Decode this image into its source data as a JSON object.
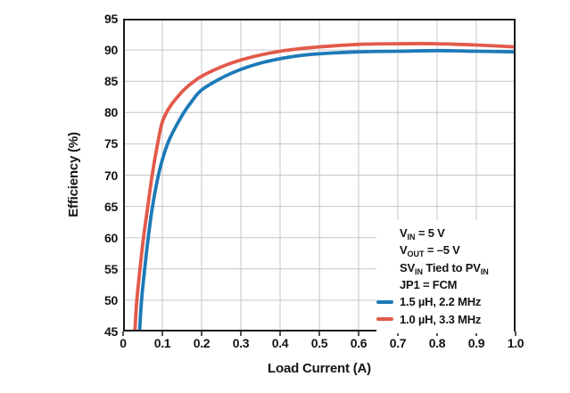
{
  "figure": {
    "background": "#ffffff"
  },
  "chart_data": {
    "type": "line",
    "title": "",
    "xlabel": "Load Current (A)",
    "ylabel": "Efficiency (%)",
    "xlim": [
      0,
      1.0
    ],
    "ylim": [
      45,
      95
    ],
    "x_ticks": [
      0,
      0.1,
      0.2,
      0.3,
      0.4,
      0.5,
      0.6,
      0.7,
      0.8,
      0.9,
      1.0
    ],
    "x_tick_labels": [
      "0",
      "0.1",
      "0.2",
      "0.3",
      "0.4",
      "0.5",
      "0.6",
      "0.7",
      "0.8",
      "0.9",
      "1.0"
    ],
    "y_ticks": [
      45,
      50,
      55,
      60,
      65,
      70,
      75,
      80,
      85,
      90,
      95
    ],
    "grid": true,
    "grid_color": "#c6c6c6",
    "axis_color": "#1a1a1a",
    "legend_position": "inside-bottom-right",
    "series": [
      {
        "name": "1.5 µH, 2.2 MHz",
        "color": "#1d7ab8",
        "points": [
          [
            0.042,
            45
          ],
          [
            0.047,
            50
          ],
          [
            0.055,
            55
          ],
          [
            0.064,
            60
          ],
          [
            0.075,
            65
          ],
          [
            0.09,
            70
          ],
          [
            0.105,
            73.5
          ],
          [
            0.12,
            76
          ],
          [
            0.15,
            79.5
          ],
          [
            0.175,
            81.8
          ],
          [
            0.2,
            83.6
          ],
          [
            0.25,
            85.5
          ],
          [
            0.3,
            86.9
          ],
          [
            0.35,
            87.9
          ],
          [
            0.4,
            88.6
          ],
          [
            0.45,
            89.1
          ],
          [
            0.5,
            89.4
          ],
          [
            0.6,
            89.7
          ],
          [
            0.7,
            89.8
          ],
          [
            0.8,
            89.9
          ],
          [
            0.9,
            89.8
          ],
          [
            1.0,
            89.7
          ]
        ]
      },
      {
        "name": "1.0 µH, 3.3 MHz",
        "color": "#e25a4b",
        "points": [
          [
            0.03,
            45
          ],
          [
            0.035,
            50
          ],
          [
            0.043,
            55
          ],
          [
            0.052,
            60
          ],
          [
            0.063,
            65
          ],
          [
            0.074,
            70
          ],
          [
            0.088,
            75
          ],
          [
            0.1,
            78.5
          ],
          [
            0.12,
            81
          ],
          [
            0.15,
            83.3
          ],
          [
            0.175,
            84.7
          ],
          [
            0.2,
            85.8
          ],
          [
            0.25,
            87.3
          ],
          [
            0.3,
            88.4
          ],
          [
            0.35,
            89.2
          ],
          [
            0.4,
            89.8
          ],
          [
            0.45,
            90.2
          ],
          [
            0.5,
            90.5
          ],
          [
            0.6,
            90.9
          ],
          [
            0.7,
            91.0
          ],
          [
            0.8,
            91.0
          ],
          [
            0.9,
            90.8
          ],
          [
            1.0,
            90.5
          ]
        ]
      }
    ],
    "legend": {
      "conditions": [
        [
          {
            "t": "V"
          },
          {
            "t": "IN",
            "sub": true
          },
          {
            "t": " = 5 V"
          }
        ],
        [
          {
            "t": "V"
          },
          {
            "t": "OUT",
            "sub": true
          },
          {
            "t": " = –5 V"
          }
        ],
        [
          {
            "t": "SV"
          },
          {
            "t": "IN",
            "sub": true
          },
          {
            "t": " Tied to PV"
          },
          {
            "t": "IN",
            "sub": true
          }
        ],
        [
          {
            "t": "JP1 = FCM"
          }
        ]
      ],
      "entries": [
        {
          "label": "1.5 µH, 2.2 MHz",
          "color": "#1d7ab8"
        },
        {
          "label": "1.0 µH, 3.3 MHz",
          "color": "#e25a4b"
        }
      ]
    }
  }
}
